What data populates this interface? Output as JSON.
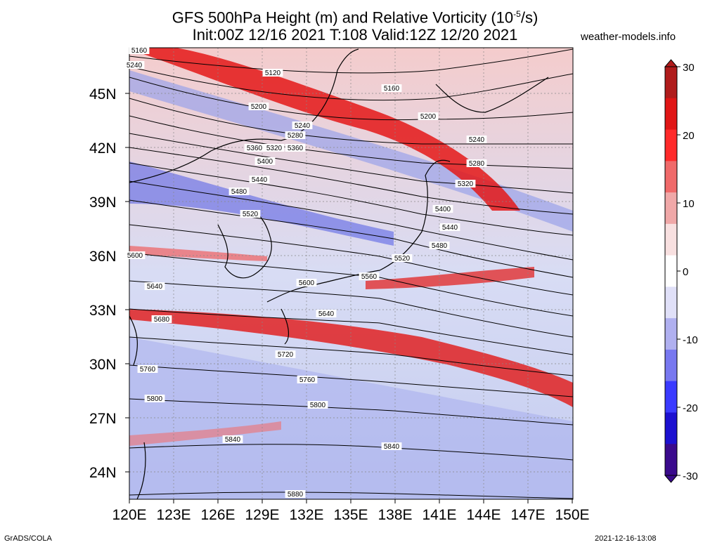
{
  "header": {
    "title_line1": "GFS 500hPa Height (m) and Relative Vorticity (10",
    "title_exp": "-5",
    "title_unit_end": "/s)",
    "title_line2": "Init:00Z 12/16 2021 T:108 Valid:12Z 12/20 2021",
    "site": "weather-models.info"
  },
  "footer": {
    "left": "GrADS/COLA",
    "right": "2021-12-16-13:08"
  },
  "map": {
    "lat_labels": [
      "45N",
      "42N",
      "39N",
      "36N",
      "33N",
      "30N",
      "27N",
      "24N"
    ],
    "lon_labels": [
      "120E",
      "123E",
      "126E",
      "129E",
      "132E",
      "135E",
      "138E",
      "141E",
      "144E",
      "147E",
      "150E"
    ],
    "contour_labels": [
      "5160",
      "5240",
      "5120",
      "5160",
      "5200",
      "5200",
      "5240",
      "5240",
      "5280",
      "5280",
      "5320",
      "5320",
      "5360",
      "5360",
      "5400",
      "5400",
      "5440",
      "5440",
      "5480",
      "5480",
      "5520",
      "5520",
      "5560",
      "5600",
      "5600",
      "5640",
      "5640",
      "5680",
      "5720",
      "5760",
      "5760",
      "5800",
      "5800",
      "5840",
      "5840",
      "5880"
    ]
  },
  "colorbar": {
    "ticks": [
      "30",
      "20",
      "10",
      "0",
      "-10",
      "-20",
      "-30"
    ],
    "colors": [
      "#3a0a8c",
      "#1c10d0",
      "#3a3aff",
      "#7878f0",
      "#b0b0f0",
      "#e0e0f8",
      "#ffffff",
      "#f8e0e0",
      "#f0a8a8",
      "#f06a6a",
      "#ff2a2a",
      "#e01616",
      "#b01c1c"
    ]
  }
}
